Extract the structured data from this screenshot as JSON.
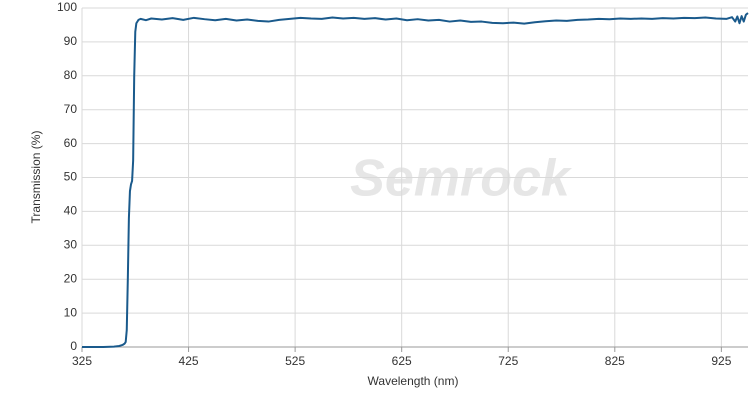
{
  "chart_data": {
    "type": "line",
    "watermark": "Semrock",
    "x_label": "Wavelength (nm)",
    "y_label": "Transmission (%)",
    "color": "#1a5a8c",
    "x": [
      325,
      335,
      345,
      355,
      360,
      363,
      365,
      366,
      367,
      368,
      369,
      370,
      371,
      372,
      373,
      374,
      375,
      376,
      378,
      380,
      385,
      390,
      400,
      410,
      420,
      430,
      440,
      450,
      460,
      470,
      480,
      490,
      500,
      510,
      520,
      530,
      540,
      550,
      560,
      570,
      580,
      590,
      600,
      610,
      620,
      630,
      640,
      650,
      660,
      670,
      680,
      690,
      700,
      710,
      720,
      730,
      740,
      750,
      760,
      770,
      780,
      790,
      800,
      810,
      820,
      830,
      840,
      850,
      860,
      870,
      880,
      890,
      900,
      910,
      920,
      930,
      935,
      938,
      940,
      942,
      944,
      946,
      948,
      950
    ],
    "values": [
      0,
      0,
      0,
      0.1,
      0.3,
      0.6,
      1.0,
      1.5,
      5,
      20,
      38,
      46,
      48,
      49,
      55,
      80,
      93,
      95.5,
      96.5,
      96.8,
      96.4,
      96.9,
      96.6,
      97.0,
      96.5,
      97.1,
      96.7,
      96.4,
      96.8,
      96.3,
      96.6,
      96.2,
      96.0,
      96.5,
      96.8,
      97.1,
      96.9,
      96.8,
      97.2,
      96.9,
      97.1,
      96.8,
      97.0,
      96.6,
      96.9,
      96.4,
      96.7,
      96.3,
      96.5,
      96.0,
      96.3,
      95.9,
      96.0,
      95.6,
      95.5,
      95.7,
      95.4,
      95.8,
      96.1,
      96.3,
      96.2,
      96.5,
      96.6,
      96.8,
      96.7,
      96.9,
      96.8,
      96.9,
      96.8,
      97.0,
      96.9,
      97.1,
      97.0,
      97.2,
      96.9,
      96.8,
      97.3,
      96.0,
      97.5,
      95.5,
      97.6,
      96.0,
      98.0,
      98.5
    ],
    "xlim": [
      325,
      950
    ],
    "ylim": [
      0,
      100
    ],
    "xticks": [
      325,
      425,
      525,
      625,
      725,
      825,
      925
    ],
    "yticks": [
      0,
      10,
      20,
      30,
      40,
      50,
      60,
      70,
      80,
      90,
      100
    ],
    "grid": true
  }
}
